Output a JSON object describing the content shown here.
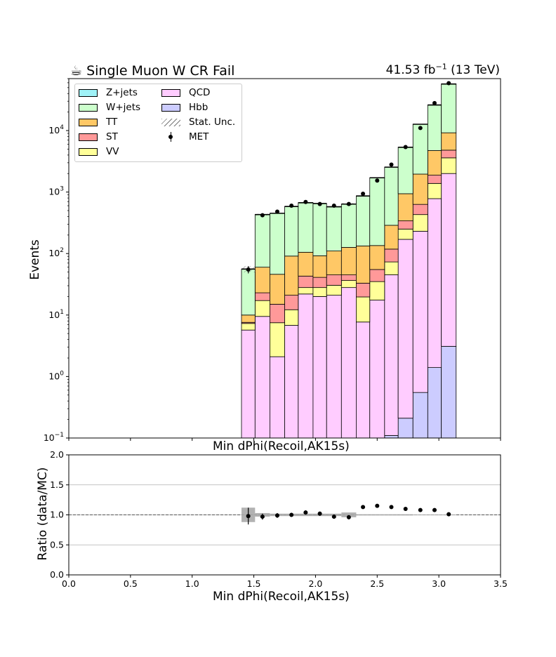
{
  "header": {
    "title": "Single Muon W CR Fail",
    "title_icon": "coffee-icon",
    "lumi_value": "41.53 fb",
    "lumi_exp": "−1",
    "lumi_energy": "(13 TeV)"
  },
  "legend": {
    "items": [
      {
        "label": "Z+jets",
        "type": "box",
        "color": "#9ff2f7"
      },
      {
        "label": "W+jets",
        "type": "box",
        "color": "#ccffcc"
      },
      {
        "label": "TT",
        "type": "box",
        "color": "#ffc866"
      },
      {
        "label": "ST",
        "type": "box",
        "color": "#ff9999"
      },
      {
        "label": "VV",
        "type": "box",
        "color": "#ffff99"
      },
      {
        "label": "QCD",
        "type": "box",
        "color": "#ffccff"
      },
      {
        "label": "Hbb",
        "type": "box",
        "color": "#ccccff"
      },
      {
        "label": "Stat. Unc.",
        "type": "hatch",
        "color": "#777777"
      },
      {
        "label": "MET",
        "type": "point",
        "color": "#000000"
      }
    ]
  },
  "chart_data": [
    {
      "type": "bar",
      "stacked": true,
      "ylabel": "Events",
      "xlabel": "Min dPhi(Recoil,AK15s)",
      "yscale": "log",
      "ylim": [
        0.1,
        70000
      ],
      "xlim": [
        0.0,
        3.5
      ],
      "x_ticks": [
        0.0,
        0.5,
        1.0,
        1.5,
        2.0,
        2.5,
        3.0,
        3.5
      ],
      "y_ticks": [
        {
          "value": 0.1,
          "base": "10",
          "exp": "−1"
        },
        {
          "value": 1,
          "base": "10",
          "exp": "0"
        },
        {
          "value": 10,
          "base": "10",
          "exp": "1"
        },
        {
          "value": 100,
          "base": "10",
          "exp": "2"
        },
        {
          "value": 1000,
          "base": "10",
          "exp": "3"
        },
        {
          "value": 10000,
          "base": "10",
          "exp": "4"
        }
      ],
      "bin_edges": [
        1.4,
        1.51,
        1.63,
        1.75,
        1.86,
        1.98,
        2.09,
        2.21,
        2.33,
        2.44,
        2.56,
        2.67,
        2.79,
        2.91,
        3.02,
        3.14
      ],
      "series": [
        {
          "name": "Hbb",
          "color": "#ccccff",
          "values": [
            0,
            0,
            0,
            0,
            0,
            0,
            0,
            0,
            0,
            0,
            0.11,
            0.21,
            0.55,
            1.4,
            3.1
          ]
        },
        {
          "name": "QCD",
          "color": "#ffccff",
          "values": [
            5.7,
            9.5,
            2.1,
            6.8,
            22,
            20,
            21,
            28,
            7.7,
            17.5,
            45,
            170,
            230,
            780,
            2000
          ]
        },
        {
          "name": "VV",
          "color": "#ffff99",
          "values": [
            1.6,
            7.7,
            5.4,
            5.4,
            6,
            8,
            9.5,
            8.5,
            12,
            17.5,
            28,
            80,
            200,
            600,
            1600
          ]
        },
        {
          "name": "ST",
          "color": "#ff9999",
          "values": [
            0.3,
            5.8,
            7.5,
            8.8,
            15,
            13,
            14.5,
            8.5,
            13.3,
            20,
            45,
            90,
            200,
            500,
            1200
          ]
        },
        {
          "name": "TT",
          "color": "#ffc866",
          "values": [
            2.4,
            37,
            31,
            70,
            62,
            51,
            65,
            81,
            100,
            80,
            170,
            600,
            1330,
            2850,
            4400
          ]
        },
        {
          "name": "W+jets",
          "color": "#ccffcc",
          "values": [
            46,
            370,
            405,
            490,
            565,
            558,
            465,
            510,
            730,
            1570,
            2250,
            4400,
            10700,
            21300,
            48000
          ]
        },
        {
          "name": "Z+jets",
          "color": "#9ff2f7",
          "values": [
            0,
            0.5,
            0.5,
            1,
            1,
            1,
            1,
            1.5,
            2,
            3,
            5,
            10,
            20,
            30,
            50
          ]
        }
      ],
      "data_series": {
        "name": "MET",
        "x": [
          1.455,
          1.57,
          1.69,
          1.805,
          1.92,
          2.035,
          2.15,
          2.27,
          2.385,
          2.5,
          2.615,
          2.73,
          2.85,
          2.965,
          3.08
        ],
        "y": [
          55,
          420,
          480,
          600,
          690,
          640,
          600,
          640,
          940,
          1540,
          2800,
          5400,
          11000,
          28000,
          59000
        ]
      }
    },
    {
      "type": "scatter",
      "ylabel": "Ratio (data/MC)",
      "xlabel": "Min dPhi(Recoil,AK15s)",
      "ylim": [
        0.0,
        2.0
      ],
      "xlim": [
        0.0,
        3.5
      ],
      "x_ticks": [
        0.0,
        0.5,
        1.0,
        1.5,
        2.0,
        2.5,
        3.0,
        3.5
      ],
      "y_ticks": [
        0.0,
        0.5,
        1.0,
        1.5,
        2.0
      ],
      "reference_line": 1.0,
      "x": [
        1.455,
        1.57,
        1.69,
        1.805,
        1.92,
        2.035,
        2.15,
        2.27,
        2.385,
        2.5,
        2.615,
        2.73,
        2.85,
        2.965,
        3.08
      ],
      "y": [
        0.98,
        0.97,
        0.99,
        1.0,
        1.04,
        1.02,
        0.97,
        0.96,
        1.13,
        1.15,
        1.13,
        1.1,
        1.08,
        1.08,
        1.01
      ],
      "yerr": [
        0.14,
        0.05,
        0.04,
        0.035,
        0.035,
        0.035,
        0.035,
        0.035,
        0.03,
        0.025,
        0.02,
        0.015,
        0.01,
        0.01,
        0.005
      ],
      "unc_band": [
        0.12,
        0.03,
        0.02,
        0.02,
        0.02,
        0.02,
        0.02,
        0.04,
        0.01,
        0.01,
        0.01,
        0.01,
        0.005,
        0.005,
        0.005
      ]
    }
  ]
}
